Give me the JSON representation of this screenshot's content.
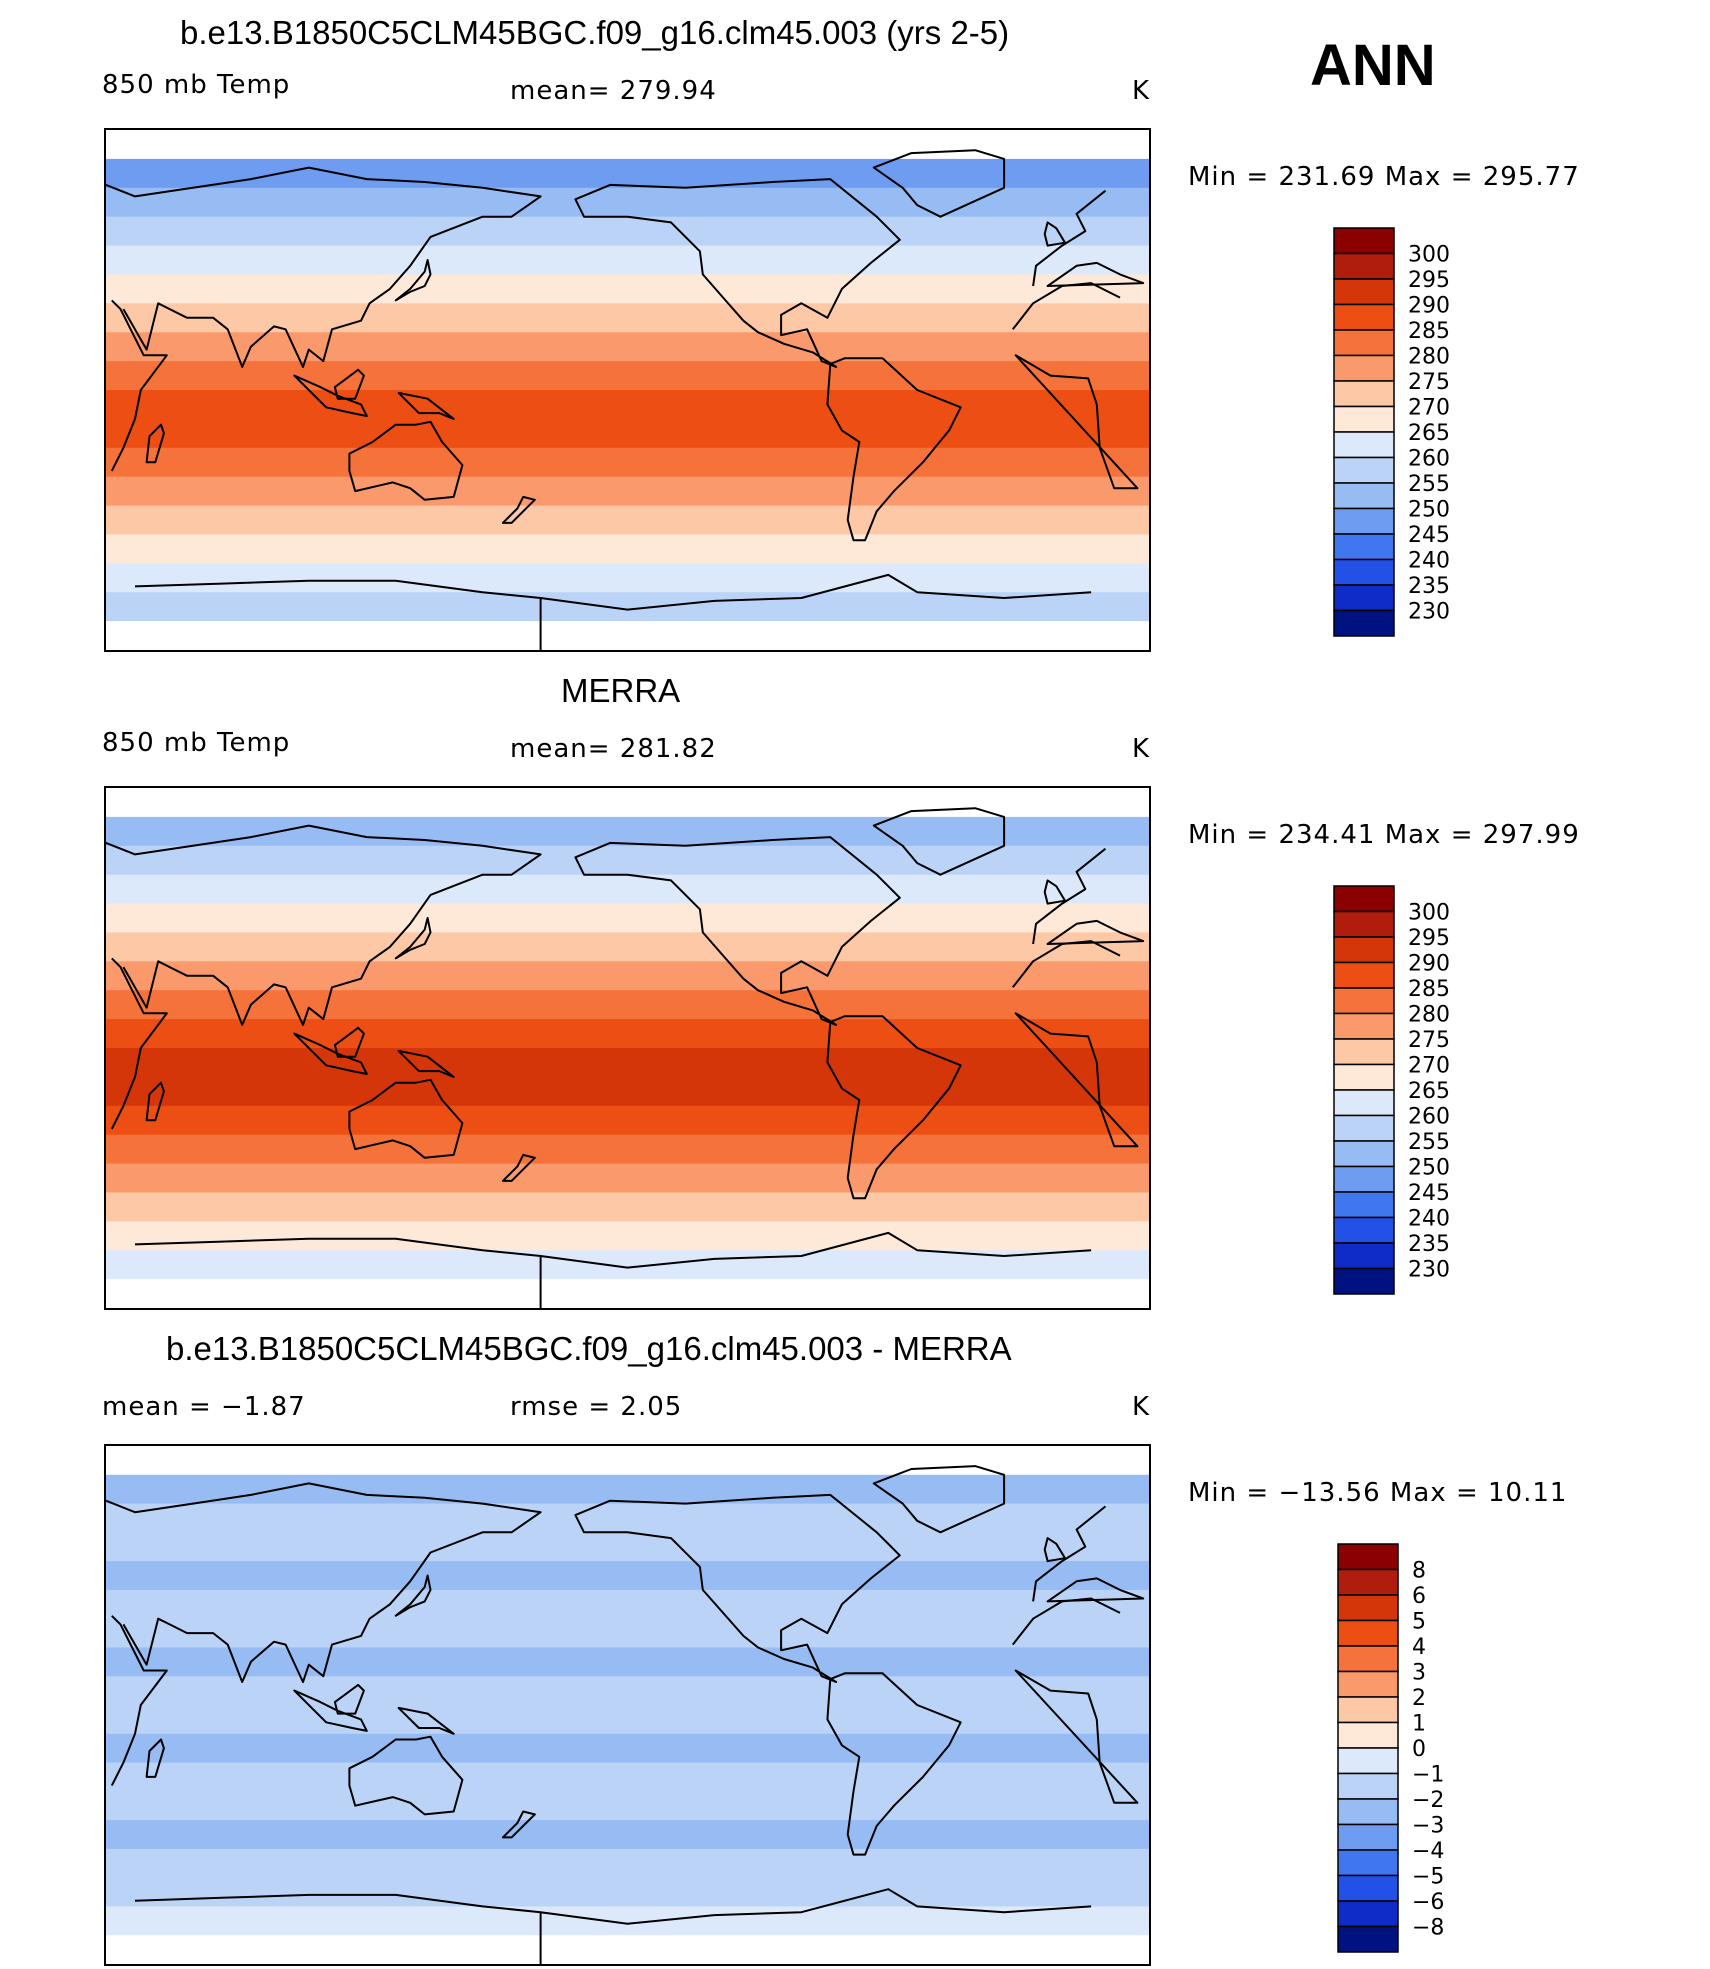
{
  "season": "ANN",
  "panels": [
    {
      "title": "b.e13.B1850C5CLM45BGC.f09_g16.clm45.003 (yrs 2-5)",
      "left_label": "850 mb Temp",
      "center_label": "mean= 279.94",
      "units": "K",
      "minmax": "Min = 231.69 Max = 295.77",
      "colorbar_labels": [
        "300",
        "295",
        "290",
        "285",
        "280",
        "275",
        "270",
        "265",
        "260",
        "255",
        "250",
        "245",
        "240",
        "235",
        "230"
      ],
      "colorbar_colors": [
        "#8b0000",
        "#b11d0c",
        "#d53609",
        "#ec4e14",
        "#f5723b",
        "#fa9a6c",
        "#fdc8a6",
        "#fee9d8",
        "#dce9fa",
        "#bad3f6",
        "#96bcf3",
        "#6e9cf1",
        "#4077f0",
        "#2350e6",
        "#0f2bc8",
        "#00127f"
      ],
      "bands": [
        "#ffffff",
        "#6e9cf1",
        "#96bcf3",
        "#bad3f6",
        "#dce9fa",
        "#fee9d8",
        "#fdc8a6",
        "#fa9a6c",
        "#f5723b",
        "#ec4e14",
        "#ec4e14",
        "#f5723b",
        "#fa9a6c",
        "#fdc8a6",
        "#fee9d8",
        "#dce9fa",
        "#bad3f6",
        "#ffffff"
      ]
    },
    {
      "title": "MERRA",
      "left_label": "850 mb Temp",
      "center_label": "mean= 281.82",
      "units": "K",
      "minmax": "Min = 234.41 Max = 297.99",
      "colorbar_labels": [
        "300",
        "295",
        "290",
        "285",
        "280",
        "275",
        "270",
        "265",
        "260",
        "255",
        "250",
        "245",
        "240",
        "235",
        "230"
      ],
      "colorbar_colors": [
        "#8b0000",
        "#b11d0c",
        "#d53609",
        "#ec4e14",
        "#f5723b",
        "#fa9a6c",
        "#fdc8a6",
        "#fee9d8",
        "#dce9fa",
        "#bad3f6",
        "#96bcf3",
        "#6e9cf1",
        "#4077f0",
        "#2350e6",
        "#0f2bc8",
        "#00127f"
      ],
      "bands": [
        "#ffffff",
        "#96bcf3",
        "#bad3f6",
        "#dce9fa",
        "#fee9d8",
        "#fdc8a6",
        "#fa9a6c",
        "#f5723b",
        "#ec4e14",
        "#d53609",
        "#d53609",
        "#ec4e14",
        "#f5723b",
        "#fa9a6c",
        "#fdc8a6",
        "#fee9d8",
        "#dce9fa",
        "#ffffff"
      ]
    },
    {
      "title": "b.e13.B1850C5CLM45BGC.f09_g16.clm45.003 - MERRA",
      "left_label": "mean =   −1.87",
      "center_label": "rmse =    2.05",
      "units": "K",
      "minmax": "Min = −13.56 Max =  10.11",
      "colorbar_labels": [
        "8",
        "6",
        "5",
        "4",
        "3",
        "2",
        "1",
        "0",
        "−1",
        "−2",
        "−3",
        "−4",
        "−5",
        "−6",
        "−8"
      ],
      "colorbar_colors": [
        "#8b0000",
        "#b11d0c",
        "#d53609",
        "#ec4e14",
        "#f5723b",
        "#fa9a6c",
        "#fdc8a6",
        "#fee9d8",
        "#dce9fa",
        "#bad3f6",
        "#96bcf3",
        "#6e9cf1",
        "#4077f0",
        "#2350e6",
        "#0f2bc8",
        "#00127f"
      ],
      "bands": [
        "#ffffff",
        "#96bcf3",
        "#bad3f6",
        "#bad3f6",
        "#96bcf3",
        "#bad3f6",
        "#bad3f6",
        "#96bcf3",
        "#bad3f6",
        "#bad3f6",
        "#96bcf3",
        "#bad3f6",
        "#bad3f6",
        "#96bcf3",
        "#bad3f6",
        "#bad3f6",
        "#dce9fa",
        "#ffffff"
      ]
    }
  ]
}
